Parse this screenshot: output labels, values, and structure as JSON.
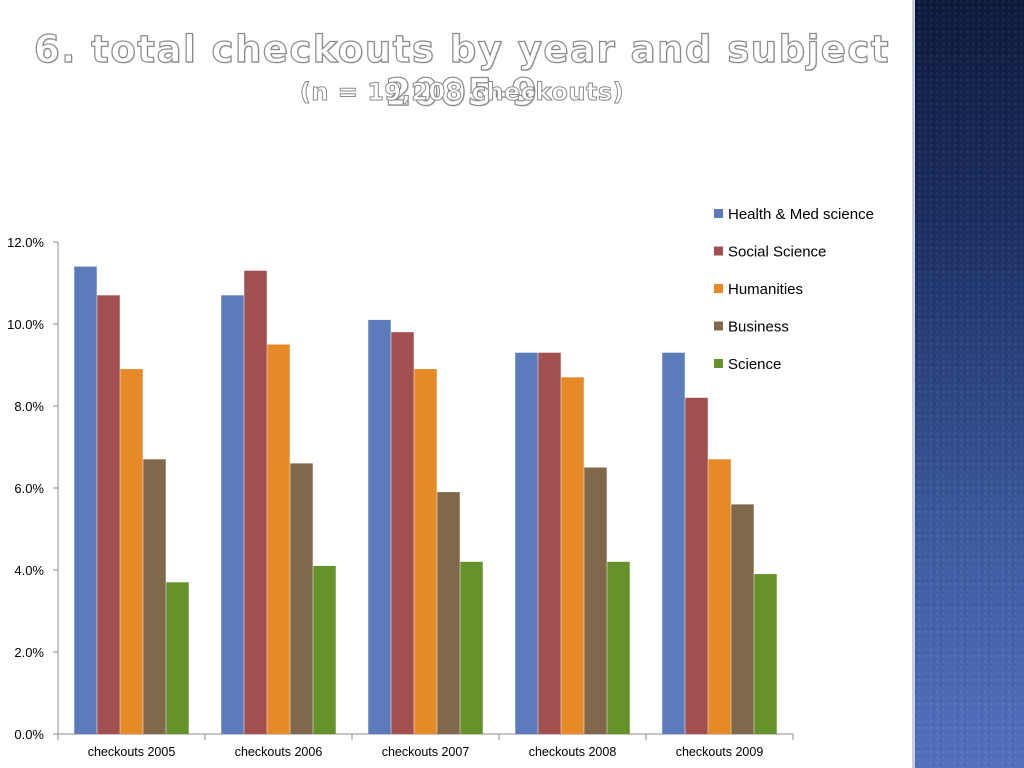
{
  "slide": {
    "title": "6. total checkouts by year and subject 2005-9",
    "subtitle": "(n = 19,208 checkouts)"
  },
  "chart_data": {
    "type": "bar",
    "categories": [
      "checkouts 2005",
      "checkouts 2006",
      "checkouts 2007",
      "checkouts 2008",
      "checkouts 2009"
    ],
    "series": [
      {
        "name": "Health & Med science",
        "color": "#5b7bbd",
        "values": [
          11.4,
          10.7,
          10.1,
          9.3,
          9.3
        ]
      },
      {
        "name": "Social Science",
        "color": "#a14f4f",
        "values": [
          10.7,
          11.3,
          9.8,
          9.3,
          8.2
        ]
      },
      {
        "name": "Humanities",
        "color": "#e68a27",
        "values": [
          8.9,
          9.5,
          8.9,
          8.7,
          6.7
        ]
      },
      {
        "name": "Business",
        "color": "#80684b",
        "values": [
          6.7,
          6.6,
          5.9,
          6.5,
          5.6
        ]
      },
      {
        "name": "Science",
        "color": "#66922b",
        "values": [
          3.7,
          4.1,
          4.2,
          4.2,
          3.9
        ]
      }
    ],
    "yticks": [
      "0.0%",
      "2.0%",
      "4.0%",
      "6.0%",
      "8.0%",
      "10.0%",
      "12.0%"
    ],
    "ylim": [
      0,
      12
    ],
    "legend_position": "top-right",
    "grid": false
  }
}
